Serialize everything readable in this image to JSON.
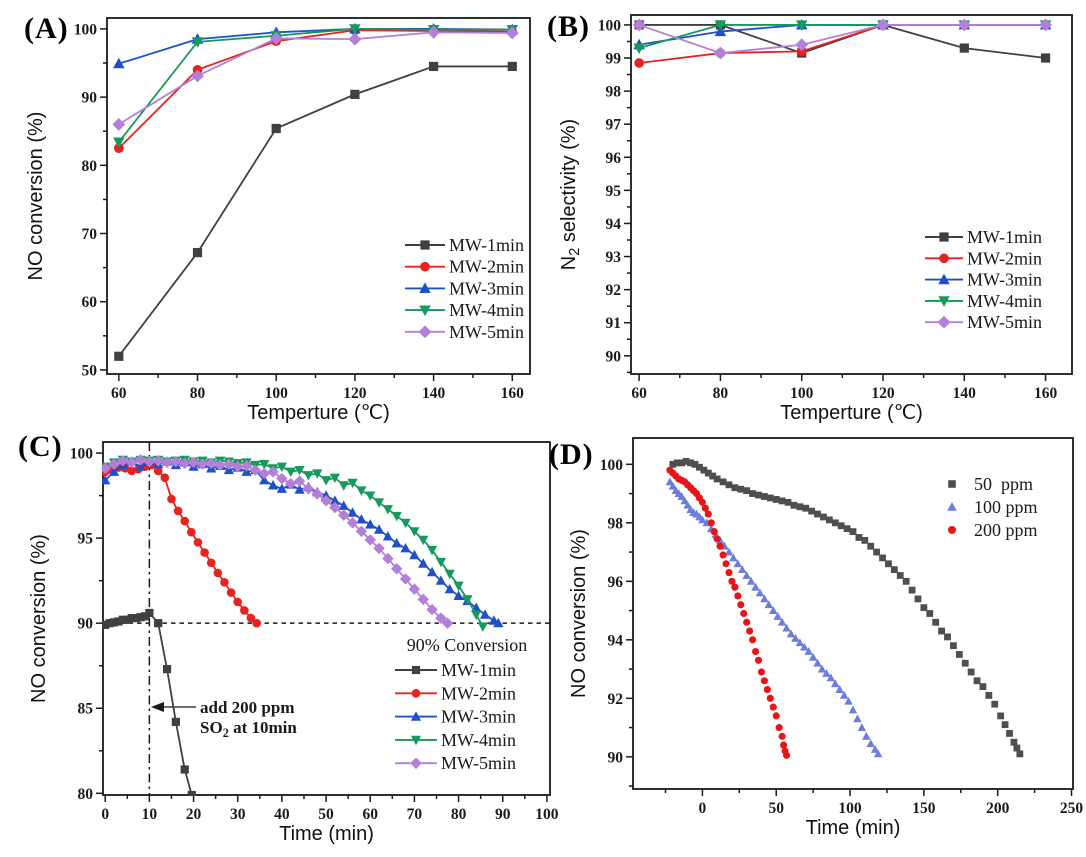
{
  "figure": {
    "background": "#ffffff",
    "frame_color": "#1a1a1a"
  },
  "chart_data": [
    {
      "panel_label": "(A)",
      "type": "line",
      "title": "",
      "xlabel": "Temperture (℃)",
      "ylabel": "NO conversion (%)",
      "xlim": [
        57,
        164.5
      ],
      "ylim": [
        49.4,
        101.6
      ],
      "xticks": [
        60,
        80,
        100,
        120,
        140,
        160
      ],
      "yticks": [
        50,
        60,
        70,
        80,
        90,
        100
      ],
      "legend_position": "right-middle",
      "x": [
        60,
        80,
        100,
        120,
        140,
        160
      ],
      "series": [
        {
          "name": "MW-1min",
          "color": "#404040",
          "marker": "square",
          "values": [
            52.0,
            67.2,
            85.4,
            90.4,
            94.5,
            94.5
          ]
        },
        {
          "name": "MW-2min",
          "color": "#e8231f",
          "marker": "circle",
          "values": [
            82.5,
            94.0,
            98.2,
            99.8,
            99.7,
            99.6
          ]
        },
        {
          "name": "MW-3min",
          "color": "#2050c8",
          "marker": "triangle-up",
          "values": [
            94.9,
            98.5,
            99.5,
            100.0,
            100.0,
            99.9
          ]
        },
        {
          "name": "MW-4min",
          "color": "#16995c",
          "marker": "triangle-down",
          "values": [
            83.4,
            98.1,
            99.0,
            100.0,
            99.9,
            99.9
          ]
        },
        {
          "name": "MW-5min",
          "color": "#b47fd9",
          "marker": "diamond",
          "values": [
            86.0,
            93.1,
            98.6,
            98.5,
            99.5,
            99.4
          ]
        }
      ]
    },
    {
      "panel_label": "(B)",
      "type": "line",
      "title": "",
      "xlabel": "Temperture (℃)",
      "ylabel": "N₂ selectivity (%)",
      "xlim": [
        58,
        166.5
      ],
      "ylim": [
        89.45,
        100.3
      ],
      "xticks": [
        60,
        80,
        100,
        120,
        140,
        160
      ],
      "yticks": [
        90,
        91,
        92,
        93,
        94,
        95,
        96,
        97,
        98,
        99,
        100
      ],
      "legend_position": "right-middle",
      "x": [
        60,
        80,
        100,
        120,
        140,
        160
      ],
      "series": [
        {
          "name": "MW-1min",
          "color": "#404040",
          "marker": "square",
          "values": [
            100.0,
            100.0,
            99.15,
            100.0,
            99.3,
            99.0
          ]
        },
        {
          "name": "MW-2min",
          "color": "#e8231f",
          "marker": "circle",
          "values": [
            98.85,
            99.15,
            99.2,
            100.0,
            100.0,
            100.0
          ]
        },
        {
          "name": "MW-3min",
          "color": "#2050c8",
          "marker": "triangle-up",
          "values": [
            99.4,
            99.8,
            100.0,
            100.0,
            100.0,
            100.0
          ]
        },
        {
          "name": "MW-4min",
          "color": "#16995c",
          "marker": "triangle-down",
          "values": [
            99.3,
            100.0,
            100.0,
            100.0,
            100.0,
            100.0
          ]
        },
        {
          "name": "MW-5min",
          "color": "#b47fd9",
          "marker": "diamond",
          "values": [
            100.0,
            99.15,
            99.4,
            100.0,
            100.0,
            100.0
          ]
        }
      ]
    },
    {
      "panel_label": "(C)",
      "type": "line",
      "title": "",
      "xlabel": "Time (min)",
      "ylabel": "NO conversion (%)",
      "xlim": [
        -0.5,
        100.7
      ],
      "ylim": [
        79.9,
        100.65
      ],
      "xticks": [
        0,
        10,
        20,
        30,
        40,
        50,
        60,
        70,
        80,
        90,
        100
      ],
      "yticks": [
        80,
        85,
        90,
        95,
        100
      ],
      "legend_position": "bottom-right",
      "legend_title": "90% Conversion",
      "annotations": {
        "vline_x": 10,
        "hline_y": 90,
        "note_line1": "add 200 ppm",
        "note_line2": "SO₂ at 10min",
        "note_target": "arrow points to vertical line at 10 min, 85 %"
      },
      "series": [
        {
          "name": "MW-1min",
          "color": "#404040",
          "marker": "square",
          "x": [
            0,
            1,
            2,
            3,
            4,
            5,
            6,
            7,
            8,
            9,
            10,
            12,
            14,
            16,
            18,
            19.6
          ],
          "y": [
            89.9,
            90.0,
            90.05,
            90.1,
            90.2,
            90.2,
            90.3,
            90.3,
            90.35,
            90.4,
            90.6,
            90.0,
            87.3,
            84.2,
            81.4,
            79.9
          ]
        },
        {
          "name": "MW-2min",
          "color": "#e8231f",
          "marker": "circle",
          "x": [
            0,
            1.5,
            3,
            4.5,
            6,
            7.5,
            9,
            10.5,
            12,
            13.5,
            15,
            16.5,
            18,
            19.5,
            21,
            22.5,
            24,
            25.5,
            27,
            28.5,
            30,
            31.5,
            33,
            34.3
          ],
          "y": [
            98.9,
            99.0,
            99.15,
            99.1,
            98.95,
            99.05,
            99.2,
            99.3,
            98.95,
            98.55,
            97.3,
            96.6,
            96.0,
            95.35,
            94.75,
            94.15,
            93.55,
            92.95,
            92.4,
            91.8,
            91.25,
            90.75,
            90.3,
            90.0
          ]
        },
        {
          "name": "MW-3min",
          "color": "#2050c8",
          "marker": "triangle-up",
          "x": [
            0,
            2,
            4,
            6,
            8,
            10,
            12,
            14,
            16,
            18,
            20,
            22,
            24,
            26,
            28,
            30,
            32,
            34,
            36,
            38,
            40,
            42,
            44,
            46,
            48,
            50,
            52,
            54,
            56,
            58,
            60,
            62,
            64,
            66,
            68,
            70,
            72,
            74,
            76,
            78,
            80,
            82,
            84,
            86,
            88,
            89
          ],
          "y": [
            98.4,
            98.9,
            99.3,
            99.5,
            99.2,
            99.5,
            99.35,
            99.5,
            99.3,
            99.45,
            99.2,
            99.35,
            99.1,
            99.25,
            99.0,
            99.15,
            98.9,
            99.0,
            98.4,
            98.1,
            97.9,
            98.15,
            97.85,
            98.0,
            97.7,
            97.5,
            97.2,
            96.9,
            96.5,
            96.1,
            95.8,
            95.5,
            95.1,
            94.7,
            94.4,
            94.0,
            93.5,
            93.0,
            92.5,
            92.0,
            91.6,
            91.3,
            90.9,
            90.5,
            90.15,
            90.0
          ]
        },
        {
          "name": "MW-4min",
          "color": "#16995c",
          "marker": "triangle-down",
          "x": [
            0,
            2,
            4,
            6,
            8,
            10,
            12,
            14,
            16,
            18,
            20,
            22,
            24,
            26,
            28,
            30,
            32,
            34,
            36,
            38,
            40,
            42,
            44,
            46,
            48,
            50,
            52,
            54,
            56,
            58,
            60,
            62,
            64,
            66,
            68,
            70,
            72,
            74,
            76,
            78,
            80,
            82,
            84,
            85.5
          ],
          "y": [
            99.2,
            99.45,
            99.6,
            99.5,
            99.6,
            99.55,
            99.6,
            99.5,
            99.55,
            99.6,
            99.5,
            99.55,
            99.45,
            99.55,
            99.5,
            99.4,
            99.45,
            99.3,
            99.35,
            99.1,
            99.2,
            98.9,
            99.0,
            98.7,
            98.8,
            98.4,
            98.55,
            98.1,
            98.25,
            97.8,
            97.5,
            97.1,
            96.7,
            96.3,
            95.9,
            95.4,
            94.9,
            94.3,
            93.6,
            92.9,
            92.2,
            91.4,
            90.5,
            89.8
          ]
        },
        {
          "name": "MW-5min",
          "color": "#b47fd9",
          "marker": "diamond",
          "x": [
            0,
            2,
            4,
            6,
            8,
            10,
            12,
            14,
            16,
            18,
            20,
            22,
            24,
            26,
            28,
            30,
            32,
            34,
            36,
            38,
            40,
            42,
            44,
            46,
            48,
            50,
            52,
            54,
            56,
            58,
            60,
            62,
            64,
            66,
            68,
            70,
            72,
            74,
            76,
            77.5
          ],
          "y": [
            99.1,
            99.35,
            99.55,
            99.45,
            99.6,
            99.5,
            99.55,
            99.45,
            99.5,
            99.4,
            99.45,
            99.35,
            99.4,
            99.3,
            99.35,
            99.2,
            99.25,
            99.0,
            98.8,
            98.9,
            98.5,
            98.2,
            98.35,
            97.9,
            97.6,
            97.2,
            96.8,
            96.35,
            95.9,
            95.4,
            94.9,
            94.4,
            93.8,
            93.2,
            92.6,
            92.0,
            91.4,
            90.8,
            90.3,
            90.0
          ]
        }
      ]
    },
    {
      "panel_label": "(D)",
      "type": "scatter",
      "title": "",
      "xlabel": "Time (min)",
      "ylabel": "NO conversion (%)",
      "xlim": [
        -47,
        251
      ],
      "ylim": [
        88.9,
        100.9
      ],
      "xticks": [
        0,
        50,
        100,
        150,
        200,
        250
      ],
      "yticks": [
        90,
        92,
        94,
        96,
        98,
        100
      ],
      "legend_position": "top-right",
      "series": [
        {
          "name": "50  ppm",
          "color": "#4f4f4f",
          "marker": "square",
          "x": [
            -20,
            -17,
            -14,
            -11,
            -8,
            -5,
            -2,
            1,
            4,
            7,
            10,
            14,
            18,
            22,
            26,
            30,
            34,
            38,
            42,
            46,
            50,
            54,
            58,
            62,
            66,
            70,
            74,
            78,
            82,
            86,
            90,
            94,
            98,
            102,
            106,
            110,
            114,
            118,
            122,
            126,
            130,
            134,
            138,
            142,
            146,
            150,
            154,
            158,
            162,
            166,
            170,
            174,
            178,
            182,
            186,
            190,
            194,
            198,
            202,
            205,
            208,
            211,
            213,
            215
          ],
          "y": [
            100,
            100.05,
            100.05,
            100.1,
            100.05,
            100,
            99.9,
            99.8,
            99.7,
            99.6,
            99.5,
            99.4,
            99.3,
            99.2,
            99.15,
            99.1,
            99.0,
            98.95,
            98.9,
            98.85,
            98.8,
            98.75,
            98.7,
            98.6,
            98.55,
            98.5,
            98.4,
            98.3,
            98.2,
            98.1,
            98.0,
            97.9,
            97.8,
            97.7,
            97.5,
            97.4,
            97.2,
            97.0,
            96.8,
            96.6,
            96.4,
            96.2,
            96.0,
            95.7,
            95.4,
            95.1,
            94.9,
            94.6,
            94.3,
            94.1,
            93.8,
            93.5,
            93.2,
            92.9,
            92.6,
            92.4,
            92.1,
            91.8,
            91.4,
            91.1,
            90.8,
            90.5,
            90.3,
            90.1
          ]
        },
        {
          "name": "100 ppm",
          "color": "#6b7edb",
          "marker": "triangle-up",
          "x": [
            -22,
            -20,
            -18,
            -16,
            -14,
            -12,
            -10,
            -8,
            -6,
            -4,
            -2,
            0,
            3,
            6,
            9,
            12,
            15,
            18,
            21,
            24,
            27,
            30,
            33,
            36,
            39,
            42,
            45,
            48,
            51,
            54,
            57,
            60,
            63,
            66,
            69,
            72,
            75,
            78,
            81,
            84,
            87,
            90,
            93,
            96,
            99,
            102,
            105,
            108,
            111,
            114,
            117,
            119
          ],
          "y": [
            99.4,
            99.25,
            99.1,
            99.0,
            98.9,
            98.75,
            98.6,
            98.45,
            98.35,
            98.3,
            98.2,
            98.1,
            98.0,
            97.8,
            97.6,
            97.4,
            97.2,
            97.0,
            96.8,
            96.6,
            96.4,
            96.2,
            96.0,
            95.8,
            95.6,
            95.4,
            95.2,
            95.0,
            94.8,
            94.6,
            94.4,
            94.2,
            94.05,
            93.9,
            93.75,
            93.6,
            93.4,
            93.2,
            93.0,
            92.85,
            92.7,
            92.5,
            92.3,
            92.1,
            91.9,
            91.6,
            91.3,
            91.0,
            90.7,
            90.45,
            90.25,
            90.1
          ]
        },
        {
          "name": "200 ppm",
          "color": "#e81416",
          "marker": "circle",
          "x": [
            -22,
            -20,
            -18,
            -16,
            -14,
            -12,
            -10,
            -8,
            -6,
            -4,
            -2,
            0,
            2,
            4,
            6,
            8,
            10,
            12,
            14,
            16,
            18,
            20,
            22,
            24,
            26,
            28,
            30,
            32,
            34,
            36,
            38,
            40,
            42,
            44,
            46,
            48,
            50,
            52,
            54,
            55,
            56,
            57
          ],
          "y": [
            99.8,
            99.7,
            99.6,
            99.5,
            99.45,
            99.4,
            99.3,
            99.2,
            99.1,
            99.0,
            98.85,
            98.7,
            98.5,
            98.3,
            98.0,
            97.7,
            97.45,
            97.2,
            96.9,
            96.6,
            96.3,
            96.0,
            95.8,
            95.5,
            95.2,
            94.9,
            94.6,
            94.3,
            94.0,
            93.6,
            93.3,
            92.9,
            92.6,
            92.3,
            92.0,
            91.7,
            91.4,
            91.0,
            90.7,
            90.4,
            90.2,
            90.05
          ]
        }
      ]
    }
  ]
}
